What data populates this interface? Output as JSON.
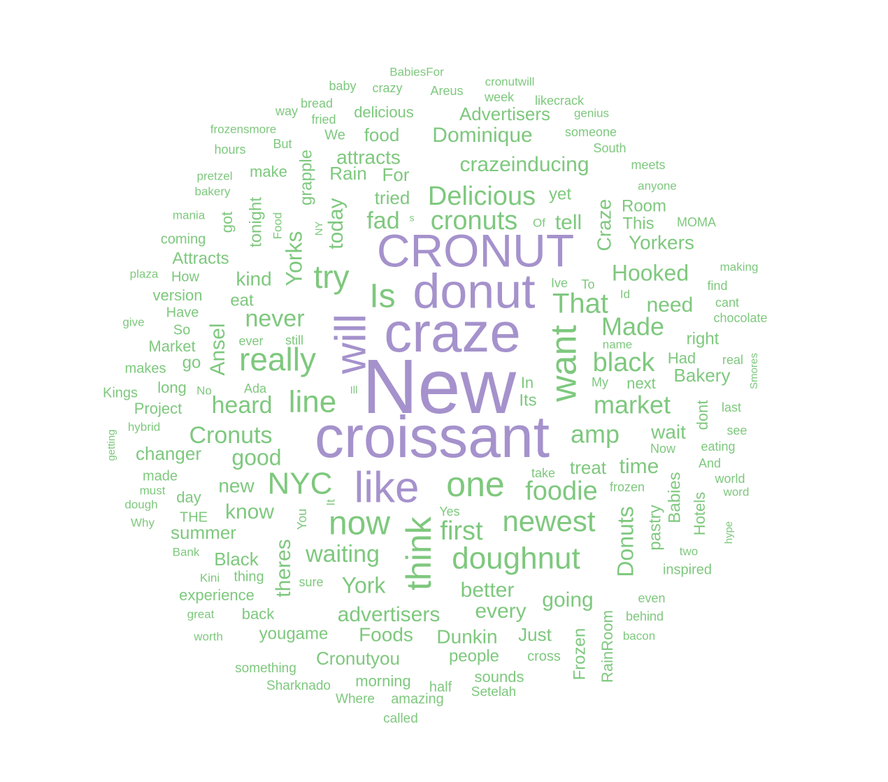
{
  "colors": {
    "primary": "#a592cc",
    "secondary": "#7ec87e",
    "background": "#ffffff"
  },
  "words": [
    {
      "text": "New",
      "weight": 10,
      "color": "primary"
    },
    {
      "text": "croissant",
      "weight": 9,
      "color": "primary"
    },
    {
      "text": "craze",
      "weight": 8.5,
      "color": "primary"
    },
    {
      "text": "donut",
      "weight": 8,
      "color": "primary"
    },
    {
      "text": "CRONUT",
      "weight": 8,
      "color": "primary"
    },
    {
      "text": "like",
      "weight": 7,
      "color": "primary"
    },
    {
      "text": "will",
      "weight": 6.5,
      "color": "primary"
    },
    {
      "text": "want",
      "weight": 6,
      "color": "secondary"
    },
    {
      "text": "think",
      "weight": 5.5,
      "color": "secondary"
    },
    {
      "text": "Is",
      "weight": 5.5,
      "color": "secondary"
    },
    {
      "text": "now",
      "weight": 5,
      "color": "secondary"
    },
    {
      "text": "one",
      "weight": 5,
      "color": "secondary"
    },
    {
      "text": "doughnut",
      "weight": 4.6,
      "color": "secondary"
    },
    {
      "text": "try",
      "weight": 4.6,
      "color": "secondary"
    },
    {
      "text": "really",
      "weight": 4.6,
      "color": "secondary"
    },
    {
      "text": "line",
      "weight": 4.6,
      "color": "secondary"
    },
    {
      "text": "NYC",
      "weight": 4.4,
      "color": "secondary"
    },
    {
      "text": "newest",
      "weight": 4.4,
      "color": "secondary"
    },
    {
      "text": "That",
      "weight": 4,
      "color": "secondary"
    },
    {
      "text": "cronuts",
      "weight": 4,
      "color": "secondary"
    },
    {
      "text": "Delicious",
      "weight": 4,
      "color": "secondary"
    },
    {
      "text": "first",
      "weight": 4,
      "color": "secondary"
    },
    {
      "text": "foodie",
      "weight": 4,
      "color": "secondary"
    },
    {
      "text": "black",
      "weight": 4,
      "color": "secondary"
    },
    {
      "text": "Made",
      "weight": 3.8,
      "color": "secondary"
    },
    {
      "text": "market",
      "weight": 3.8,
      "color": "secondary"
    },
    {
      "text": "amp",
      "weight": 3.6,
      "color": "secondary"
    },
    {
      "text": "waiting",
      "weight": 3.6,
      "color": "secondary"
    },
    {
      "text": "Cronuts",
      "weight": 3.6,
      "color": "secondary"
    },
    {
      "text": "heard",
      "weight": 3.6,
      "color": "secondary"
    },
    {
      "text": "never",
      "weight": 3.6,
      "color": "secondary"
    },
    {
      "text": "good",
      "weight": 3.4,
      "color": "secondary"
    },
    {
      "text": "York",
      "weight": 3.4,
      "color": "secondary"
    },
    {
      "text": "Yorks",
      "weight": 3.4,
      "color": "secondary"
    },
    {
      "text": "Hooked",
      "weight": 3.4,
      "color": "secondary"
    },
    {
      "text": "Donuts",
      "weight": 3.4,
      "color": "secondary"
    },
    {
      "text": "fad",
      "weight": 3.4,
      "color": "secondary"
    },
    {
      "text": "crazeinducing",
      "weight": 3.2,
      "color": "secondary"
    },
    {
      "text": "Dominique",
      "weight": 3.2,
      "color": "secondary"
    },
    {
      "text": "advertisers",
      "weight": 3.2,
      "color": "secondary"
    },
    {
      "text": "better",
      "weight": 3.2,
      "color": "secondary"
    },
    {
      "text": "every",
      "weight": 3.2,
      "color": "secondary"
    },
    {
      "text": "going",
      "weight": 3.2,
      "color": "secondary"
    },
    {
      "text": "time",
      "weight": 3.2,
      "color": "secondary"
    },
    {
      "text": "need",
      "weight": 3.2,
      "color": "secondary"
    },
    {
      "text": "today",
      "weight": 3.2,
      "color": "secondary"
    },
    {
      "text": "know",
      "weight": 3.2,
      "color": "secondary"
    },
    {
      "text": "theres",
      "weight": 3.2,
      "color": "secondary"
    },
    {
      "text": "Ansel",
      "weight": 3.2,
      "color": "secondary"
    },
    {
      "text": "tell",
      "weight": 3,
      "color": "secondary"
    },
    {
      "text": "wait",
      "weight": 3,
      "color": "secondary"
    },
    {
      "text": "Craze",
      "weight": 3,
      "color": "secondary"
    },
    {
      "text": "Yorkers",
      "weight": 3,
      "color": "secondary"
    },
    {
      "text": "kind",
      "weight": 3,
      "color": "secondary"
    },
    {
      "text": "new",
      "weight": 3,
      "color": "secondary"
    },
    {
      "text": "attracts",
      "weight": 3,
      "color": "secondary"
    },
    {
      "text": "Foods",
      "weight": 3,
      "color": "secondary"
    },
    {
      "text": "Dunkin",
      "weight": 3,
      "color": "secondary"
    },
    {
      "text": "Bakery",
      "weight": 2.9,
      "color": "secondary"
    },
    {
      "text": "Cronutyou",
      "weight": 2.9,
      "color": "secondary"
    },
    {
      "text": "summer",
      "weight": 2.9,
      "color": "secondary"
    },
    {
      "text": "tried",
      "weight": 2.8,
      "color": "secondary"
    },
    {
      "text": "For",
      "weight": 2.8,
      "color": "secondary"
    },
    {
      "text": "Rain",
      "weight": 2.8,
      "color": "secondary"
    },
    {
      "text": "Advertisers",
      "weight": 2.8,
      "color": "secondary"
    },
    {
      "text": "food",
      "weight": 2.8,
      "color": "secondary"
    },
    {
      "text": "Black",
      "weight": 2.8,
      "color": "secondary"
    },
    {
      "text": "Just",
      "weight": 2.8,
      "color": "secondary"
    },
    {
      "text": "treat",
      "weight": 2.8,
      "color": "secondary"
    },
    {
      "text": "changer",
      "weight": 2.8,
      "color": "secondary"
    },
    {
      "text": "yougame",
      "weight": 2.7,
      "color": "secondary"
    },
    {
      "text": "people",
      "weight": 2.6,
      "color": "secondary"
    },
    {
      "text": "Frozen",
      "weight": 2.6,
      "color": "secondary"
    },
    {
      "text": "pastry",
      "weight": 2.6,
      "color": "secondary"
    },
    {
      "text": "Babies",
      "weight": 2.6,
      "color": "secondary"
    },
    {
      "text": "Attracts",
      "weight": 2.6,
      "color": "secondary"
    },
    {
      "text": "tonight",
      "weight": 2.6,
      "color": "secondary"
    },
    {
      "text": "grapple",
      "weight": 2.6,
      "color": "secondary"
    },
    {
      "text": "eat",
      "weight": 2.6,
      "color": "secondary"
    },
    {
      "text": "right",
      "weight": 2.6,
      "color": "secondary"
    },
    {
      "text": "go",
      "weight": 2.6,
      "color": "secondary"
    },
    {
      "text": "yet",
      "weight": 2.6,
      "color": "secondary"
    },
    {
      "text": "This",
      "weight": 2.6,
      "color": "secondary"
    },
    {
      "text": "Room",
      "weight": 2.6,
      "color": "secondary"
    },
    {
      "text": "next",
      "weight": 2.4,
      "color": "secondary"
    },
    {
      "text": "Its",
      "weight": 2.4,
      "color": "secondary"
    },
    {
      "text": "In",
      "weight": 2.4,
      "color": "secondary"
    },
    {
      "text": "Hotels",
      "weight": 2.4,
      "color": "secondary"
    },
    {
      "text": "dont",
      "weight": 2.4,
      "color": "secondary"
    },
    {
      "text": "Had",
      "weight": 2.4,
      "color": "secondary"
    },
    {
      "text": "version",
      "weight": 2.4,
      "color": "secondary"
    },
    {
      "text": "long",
      "weight": 2.4,
      "color": "secondary"
    },
    {
      "text": "back",
      "weight": 2.4,
      "color": "secondary"
    },
    {
      "text": "got",
      "weight": 2.4,
      "color": "secondary"
    },
    {
      "text": "RainRoom",
      "weight": 2.4,
      "color": "secondary"
    },
    {
      "text": "morning",
      "weight": 2.2,
      "color": "secondary"
    },
    {
      "text": "sounds",
      "weight": 2.2,
      "color": "secondary"
    },
    {
      "text": "experience",
      "weight": 2.2,
      "color": "secondary"
    },
    {
      "text": "Market",
      "weight": 2.2,
      "color": "secondary"
    },
    {
      "text": "Project",
      "weight": 2.2,
      "color": "secondary"
    },
    {
      "text": "make",
      "weight": 2.2,
      "color": "secondary"
    },
    {
      "text": "delicious",
      "weight": 2.2,
      "color": "secondary"
    },
    {
      "text": "cross",
      "weight": 2,
      "color": "secondary"
    },
    {
      "text": "day",
      "weight": 2,
      "color": "secondary"
    },
    {
      "text": "How",
      "weight": 2,
      "color": "secondary"
    },
    {
      "text": "Have",
      "weight": 2,
      "color": "secondary"
    },
    {
      "text": "So",
      "weight": 2,
      "color": "secondary"
    },
    {
      "text": "thing",
      "weight": 2,
      "color": "secondary"
    },
    {
      "text": "We",
      "weight": 2,
      "color": "secondary"
    },
    {
      "text": "half",
      "weight": 2,
      "color": "secondary"
    },
    {
      "text": "amazing",
      "weight": 2,
      "color": "secondary"
    },
    {
      "text": "inspired",
      "weight": 2,
      "color": "secondary"
    },
    {
      "text": "coming",
      "weight": 1.9,
      "color": "secondary"
    },
    {
      "text": "made",
      "weight": 1.9,
      "color": "secondary"
    },
    {
      "text": "makes",
      "weight": 1.9,
      "color": "secondary"
    },
    {
      "text": "Kings",
      "weight": 1.9,
      "color": "secondary"
    },
    {
      "text": "THE",
      "weight": 1.9,
      "color": "secondary"
    },
    {
      "text": "Sharknado",
      "weight": 1.9,
      "color": "secondary"
    },
    {
      "text": "something",
      "weight": 1.9,
      "color": "secondary"
    },
    {
      "text": "Setelah",
      "weight": 1.9,
      "color": "secondary"
    },
    {
      "text": "Where",
      "weight": 1.9,
      "color": "secondary"
    },
    {
      "text": "called",
      "weight": 1.9,
      "color": "secondary"
    },
    {
      "text": "sure",
      "weight": 1.9,
      "color": "secondary"
    },
    {
      "text": "Ada",
      "weight": 1.9,
      "color": "secondary"
    },
    {
      "text": "ever",
      "weight": 1.9,
      "color": "secondary"
    },
    {
      "text": "still",
      "weight": 1.9,
      "color": "secondary"
    },
    {
      "text": "You",
      "weight": 1.9,
      "color": "secondary"
    },
    {
      "text": "Yes",
      "weight": 1.9,
      "color": "secondary"
    },
    {
      "text": "take",
      "weight": 1.9,
      "color": "secondary"
    },
    {
      "text": "frozen",
      "weight": 1.9,
      "color": "secondary"
    },
    {
      "text": "And",
      "weight": 1.9,
      "color": "secondary"
    },
    {
      "text": "eating",
      "weight": 1.9,
      "color": "secondary"
    },
    {
      "text": "Now",
      "weight": 1.9,
      "color": "secondary"
    },
    {
      "text": "see",
      "weight": 1.9,
      "color": "secondary"
    },
    {
      "text": "last",
      "weight": 1.9,
      "color": "secondary"
    },
    {
      "text": "real",
      "weight": 1.9,
      "color": "secondary"
    },
    {
      "text": "My",
      "weight": 1.9,
      "color": "secondary"
    },
    {
      "text": "name",
      "weight": 1.8,
      "color": "secondary"
    },
    {
      "text": "chocolate",
      "weight": 1.8,
      "color": "secondary"
    },
    {
      "text": "cant",
      "weight": 1.8,
      "color": "secondary"
    },
    {
      "text": "find",
      "weight": 1.8,
      "color": "secondary"
    },
    {
      "text": "making",
      "weight": 1.8,
      "color": "secondary"
    },
    {
      "text": "MOMA",
      "weight": 1.8,
      "color": "secondary"
    },
    {
      "text": "anyone",
      "weight": 1.8,
      "color": "secondary"
    },
    {
      "text": "meets",
      "weight": 1.8,
      "color": "secondary"
    },
    {
      "text": "South",
      "weight": 1.8,
      "color": "secondary"
    },
    {
      "text": "someone",
      "weight": 1.8,
      "color": "secondary"
    },
    {
      "text": "genius",
      "weight": 1.8,
      "color": "secondary"
    },
    {
      "text": "likecrack",
      "weight": 1.8,
      "color": "secondary"
    },
    {
      "text": "week",
      "weight": 1.8,
      "color": "secondary"
    },
    {
      "text": "cronutwill",
      "weight": 1.8,
      "color": "secondary"
    },
    {
      "text": "Areus",
      "weight": 1.8,
      "color": "secondary"
    },
    {
      "text": "BabiesFor",
      "weight": 1.8,
      "color": "secondary"
    },
    {
      "text": "crazy",
      "weight": 1.8,
      "color": "secondary"
    },
    {
      "text": "baby",
      "weight": 1.8,
      "color": "secondary"
    },
    {
      "text": "bread",
      "weight": 1.8,
      "color": "secondary"
    },
    {
      "text": "fried",
      "weight": 1.8,
      "color": "secondary"
    },
    {
      "text": "way",
      "weight": 1.8,
      "color": "secondary"
    },
    {
      "text": "frozensmore",
      "weight": 1.8,
      "color": "secondary"
    },
    {
      "text": "But",
      "weight": 1.8,
      "color": "secondary"
    },
    {
      "text": "hours",
      "weight": 1.8,
      "color": "secondary"
    },
    {
      "text": "pretzel",
      "weight": 1.8,
      "color": "secondary"
    },
    {
      "text": "bakery",
      "weight": 1.8,
      "color": "secondary"
    },
    {
      "text": "mania",
      "weight": 1.8,
      "color": "secondary"
    },
    {
      "text": "plaza",
      "weight": 1.8,
      "color": "secondary"
    },
    {
      "text": "give",
      "weight": 1.8,
      "color": "secondary"
    },
    {
      "text": "hybrid",
      "weight": 1.8,
      "color": "secondary"
    },
    {
      "text": "must",
      "weight": 1.8,
      "color": "secondary"
    },
    {
      "text": "dough",
      "weight": 1.8,
      "color": "secondary"
    },
    {
      "text": "Why",
      "weight": 1.8,
      "color": "secondary"
    },
    {
      "text": "Bank",
      "weight": 1.8,
      "color": "secondary"
    },
    {
      "text": "Kini",
      "weight": 1.8,
      "color": "secondary"
    },
    {
      "text": "great",
      "weight": 1.8,
      "color": "secondary"
    },
    {
      "text": "worth",
      "weight": 1.8,
      "color": "secondary"
    },
    {
      "text": "even",
      "weight": 1.8,
      "color": "secondary"
    },
    {
      "text": "behind",
      "weight": 1.8,
      "color": "secondary"
    },
    {
      "text": "bacon",
      "weight": 1.8,
      "color": "secondary"
    },
    {
      "text": "world",
      "weight": 1.8,
      "color": "secondary"
    },
    {
      "text": "word",
      "weight": 1.8,
      "color": "secondary"
    },
    {
      "text": "two",
      "weight": 1.8,
      "color": "secondary"
    },
    {
      "text": "Ive",
      "weight": 1.8,
      "color": "secondary"
    },
    {
      "text": "To",
      "weight": 1.8,
      "color": "secondary"
    },
    {
      "text": "Id",
      "weight": 1.6,
      "color": "secondary"
    },
    {
      "text": "Of",
      "weight": 1.6,
      "color": "secondary"
    },
    {
      "text": "No",
      "weight": 1.6,
      "color": "secondary"
    },
    {
      "text": "Ill",
      "weight": 1.5,
      "color": "secondary"
    },
    {
      "text": "It",
      "weight": 1.6,
      "color": "secondary"
    },
    {
      "text": "s",
      "weight": 1.4,
      "color": "secondary"
    },
    {
      "text": "Smores",
      "weight": 1.6,
      "color": "secondary"
    },
    {
      "text": "hype",
      "weight": 1.5,
      "color": "secondary"
    },
    {
      "text": "getting",
      "weight": 1.5,
      "color": "secondary"
    },
    {
      "text": "Food",
      "weight": 1.6,
      "color": "secondary"
    },
    {
      "text": "NY",
      "weight": 1.5,
      "color": "secondary"
    }
  ]
}
